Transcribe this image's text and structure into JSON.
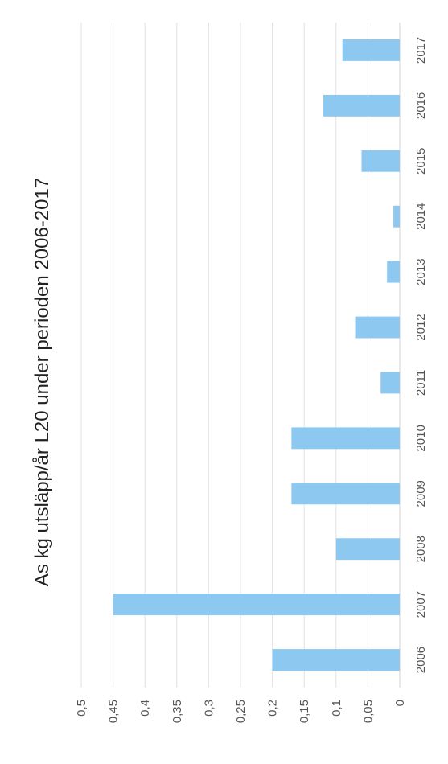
{
  "chart_data": {
    "type": "bar",
    "orientation": "vertical-bars-page-rotated",
    "title": "As kg utsläpp/år L20 under perioden 2006-2017",
    "xlabel": "",
    "ylabel": "",
    "categories": [
      "2006",
      "2007",
      "2008",
      "2009",
      "2010",
      "2011",
      "2012",
      "2013",
      "2014",
      "2015",
      "2016",
      "2017"
    ],
    "values": [
      0.2,
      0.45,
      0.1,
      0.17,
      0.17,
      0.03,
      0.07,
      0.02,
      0.01,
      0.06,
      0.12,
      0.09
    ],
    "ylim": [
      0,
      0.5
    ],
    "yticks": [
      "0",
      "0,05",
      "0,1",
      "0,15",
      "0,2",
      "0,25",
      "0,3",
      "0,35",
      "0,4",
      "0,45",
      "0,5"
    ],
    "grid": true,
    "legend": "none",
    "bar_color": "#8cc8f0",
    "grid_color": "#e2e2e2"
  }
}
